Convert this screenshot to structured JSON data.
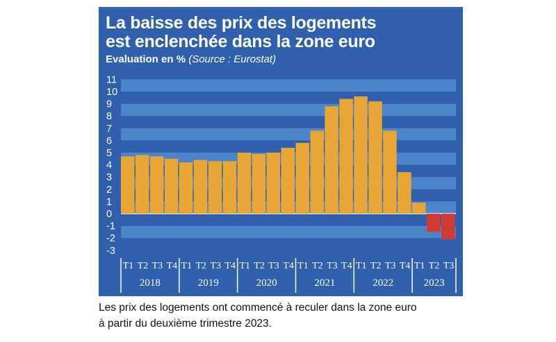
{
  "title_line1": "La baisse des prix des logements",
  "title_line2": "est enclenchée dans la zone euro",
  "subtitle": "Evaluation en %",
  "source": "(Source : Eurostat)",
  "caption_line1": "Les prix des logements ont commencé à reculer dans la zone euro",
  "caption_line2": "à partir du deuxième trimestre 2023.",
  "colors": {
    "panel": "#2f5fad",
    "stripe": "#4c84c9",
    "bar_positive": "#e8a636",
    "bar_negative": "#d13b34"
  },
  "chart_data": {
    "type": "bar",
    "ylim": [
      -3,
      11
    ],
    "yticks": [
      11,
      10,
      9,
      8,
      7,
      6,
      5,
      4,
      3,
      2,
      1,
      0,
      -1,
      -2,
      -3
    ],
    "quarters": [
      "T1",
      "T2",
      "T3",
      "T4",
      "T1",
      "T2",
      "T3",
      "T4",
      "T1",
      "T2",
      "T3",
      "T4",
      "T1",
      "T2",
      "T3",
      "T4",
      "T1",
      "T2",
      "T3",
      "T4",
      "T1",
      "T2",
      "T3"
    ],
    "years": [
      {
        "label": "2018",
        "count": 4
      },
      {
        "label": "2019",
        "count": 4
      },
      {
        "label": "2020",
        "count": 4
      },
      {
        "label": "2021",
        "count": 4
      },
      {
        "label": "2022",
        "count": 4
      },
      {
        "label": "2023",
        "count": 3
      }
    ],
    "values": [
      4.7,
      4.8,
      4.7,
      4.5,
      4.2,
      4.4,
      4.3,
      4.3,
      5.0,
      4.9,
      5.0,
      5.4,
      5.8,
      6.8,
      8.8,
      9.4,
      9.6,
      9.2,
      6.8,
      3.4,
      0.9,
      -1.5,
      -2.1
    ],
    "grid": true,
    "legend": "none"
  }
}
